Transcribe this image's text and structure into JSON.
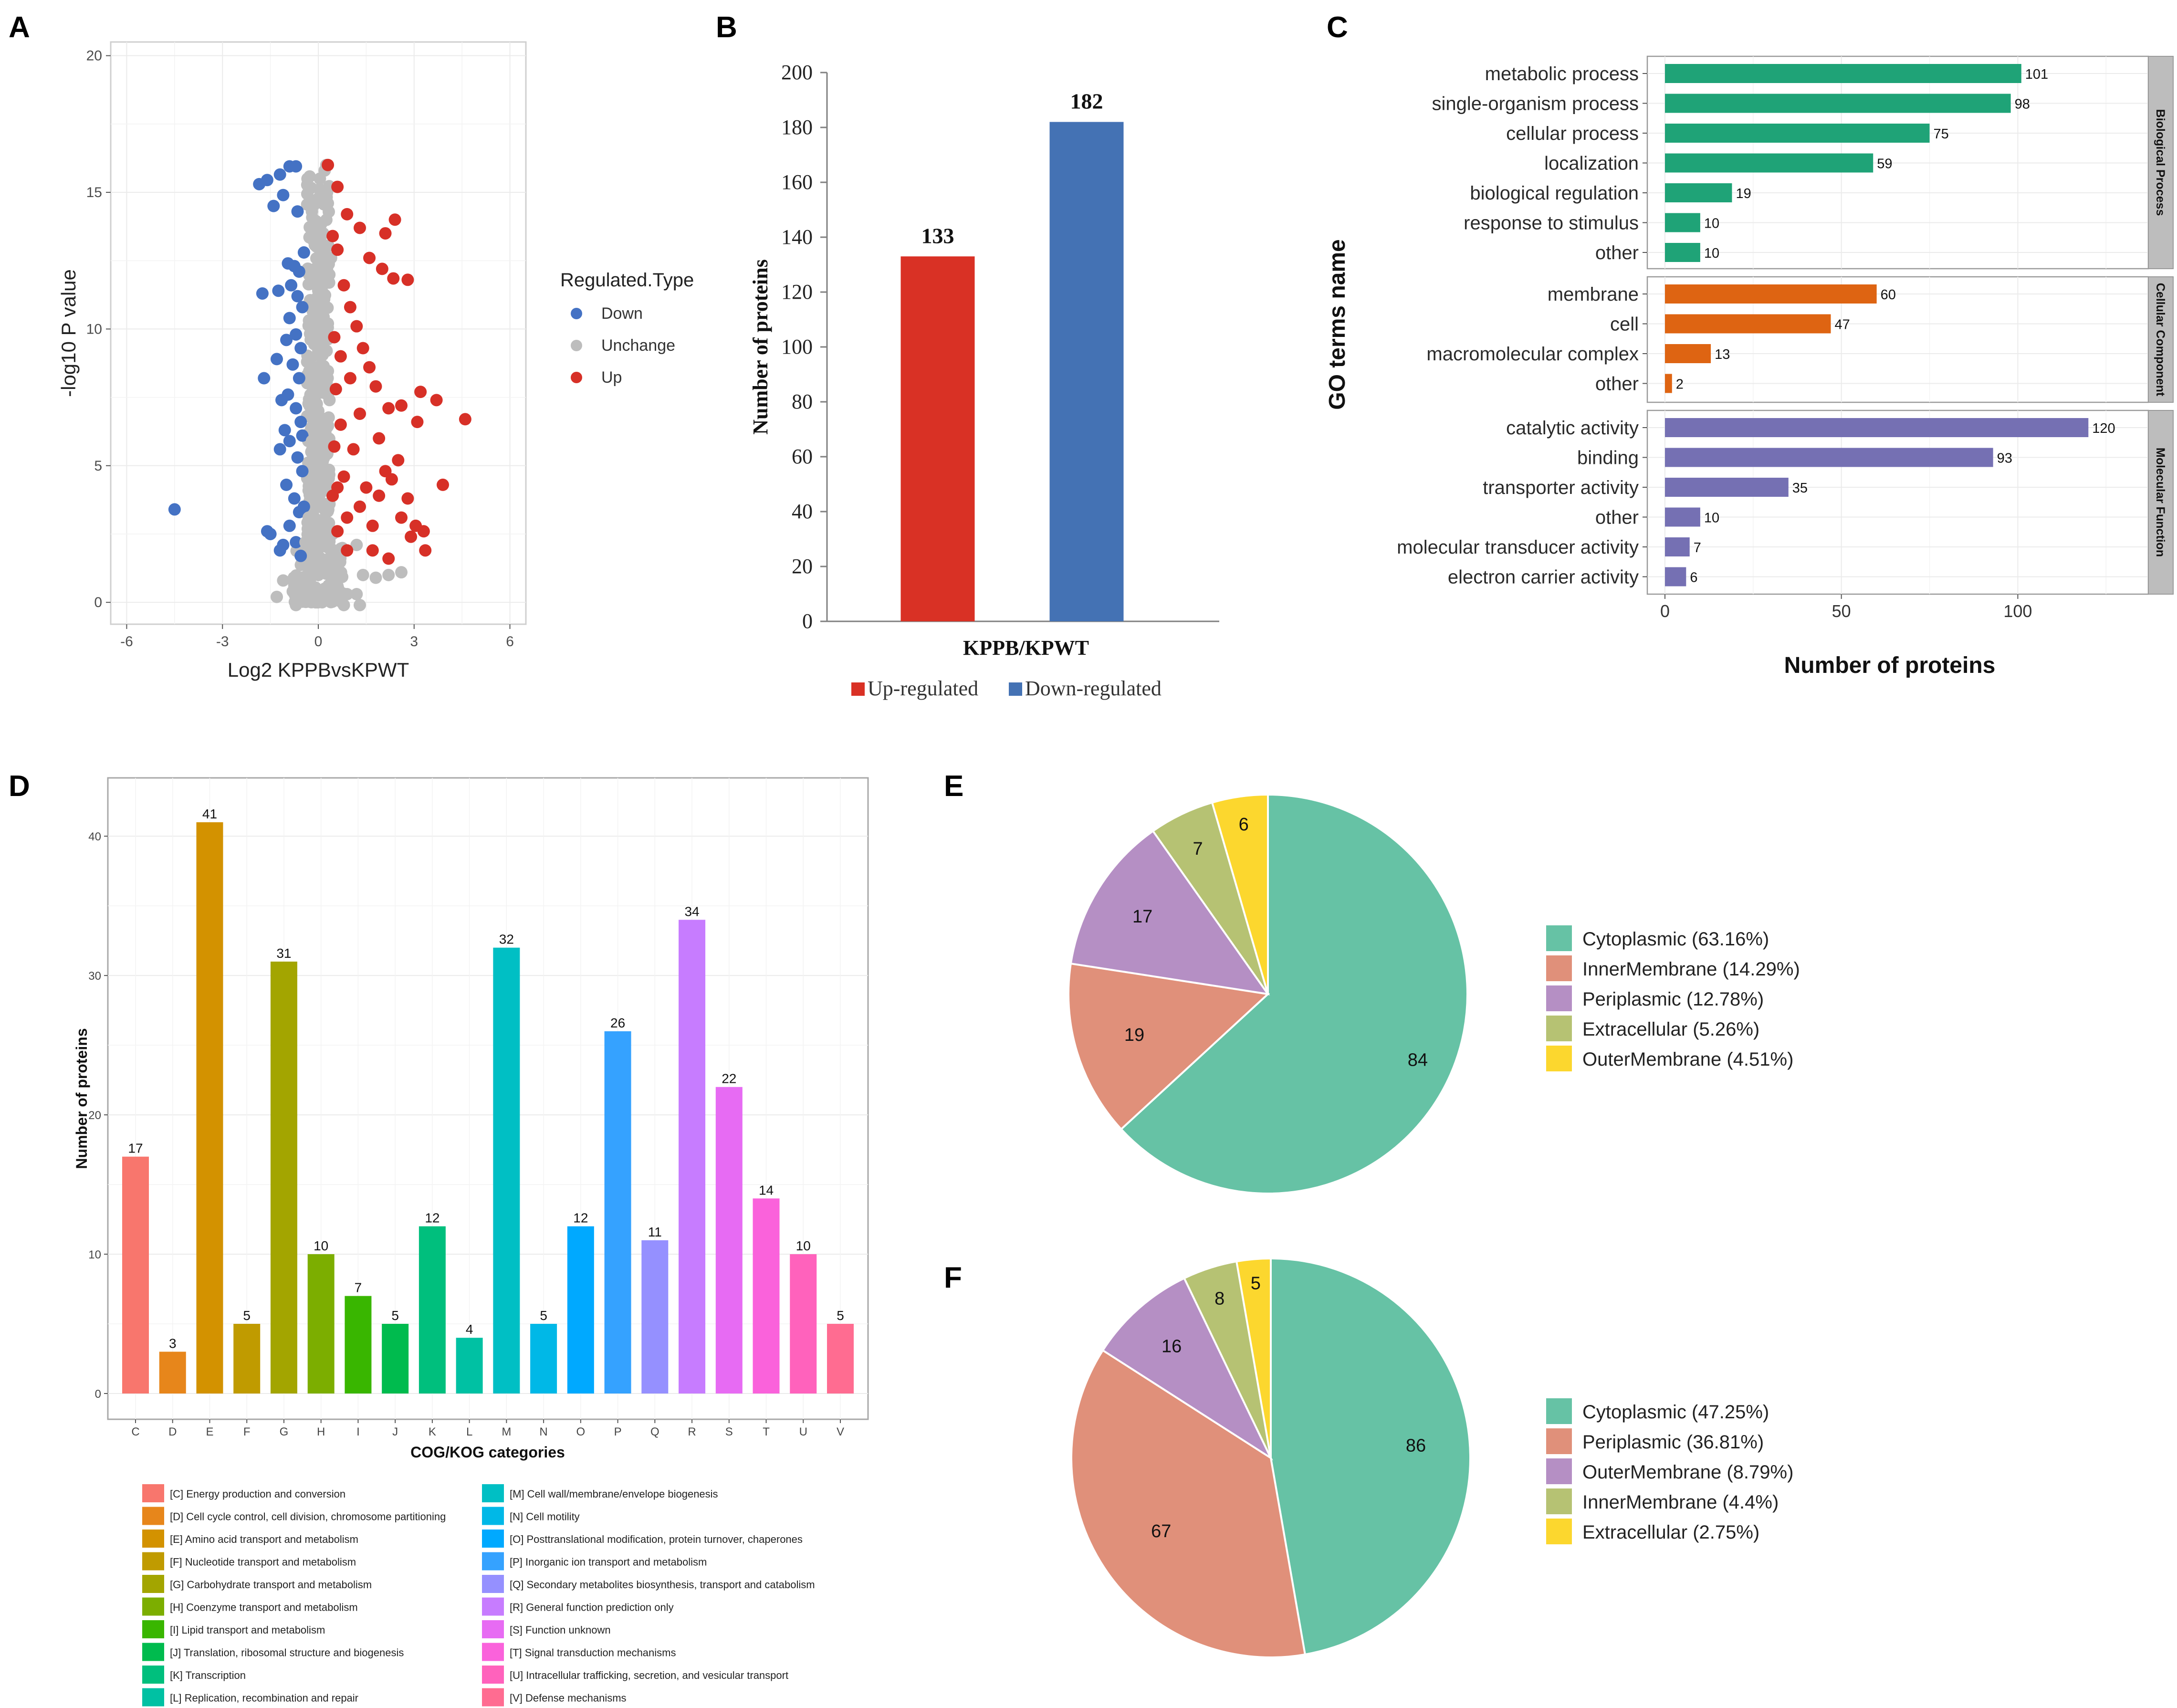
{
  "panels": {
    "A": "A",
    "B": "B",
    "C": "C",
    "D": "D",
    "E": "E",
    "F": "F"
  },
  "colors": {
    "down": "#4472c4",
    "unchange": "#bdbdbd",
    "up": "#d73027",
    "barUp": "#d93125",
    "barDown": "#4472b4",
    "bp": "#1fa377",
    "cc": "#de6412",
    "mf": "#7570b3",
    "pieTeal": "#66c2a5",
    "pieSalmon": "#e0907a",
    "pieLilac": "#b58fc4",
    "pieOlive": "#b6c273",
    "pieYellow": "#fcd72e"
  },
  "chart_data": [
    {
      "panel": "A",
      "type": "scatter",
      "xlabel": "Log2 KPPBvsKPWT",
      "ylabel": "-log10 P value",
      "xlim": [
        -6.5,
        6.5
      ],
      "ylim": [
        -0.8,
        20.5
      ],
      "xticks": [
        "-6",
        "-3",
        "0",
        "3",
        "6"
      ],
      "xtickValues": [
        -6,
        -3,
        0,
        3,
        6
      ],
      "yticks": [
        "0",
        "5",
        "10",
        "15",
        "20"
      ],
      "ytickValues": [
        0,
        5,
        10,
        15,
        20
      ],
      "legend": {
        "title": "Regulated.Type",
        "items": [
          "Down",
          "Unchange",
          "Up"
        ]
      },
      "series": [
        {
          "name": "Down",
          "points": [
            [
              -4.5,
              3.4
            ],
            [
              -1.85,
              15.3
            ],
            [
              -1.6,
              15.45
            ],
            [
              -1.2,
              15.65
            ],
            [
              -0.9,
              15.95
            ],
            [
              -0.7,
              15.95
            ],
            [
              -1.4,
              14.5
            ],
            [
              -1.1,
              14.9
            ],
            [
              -0.65,
              14.3
            ],
            [
              -1.75,
              11.3
            ],
            [
              -1.25,
              11.4
            ],
            [
              -1.7,
              8.2
            ],
            [
              -1.3,
              8.9
            ],
            [
              -1.6,
              2.6
            ],
            [
              -1.5,
              2.5
            ],
            [
              -1.2,
              1.9
            ],
            [
              -1.1,
              2.1
            ],
            [
              -0.95,
              12.4
            ],
            [
              -0.75,
              12.3
            ],
            [
              -0.6,
              12.1
            ],
            [
              -0.85,
              11.6
            ],
            [
              -0.65,
              11.2
            ],
            [
              -0.5,
              10.8
            ],
            [
              -0.9,
              10.4
            ],
            [
              -0.7,
              9.8
            ],
            [
              -0.55,
              9.3
            ],
            [
              -0.8,
              8.7
            ],
            [
              -0.6,
              8.2
            ],
            [
              -0.95,
              7.6
            ],
            [
              -0.7,
              7.1
            ],
            [
              -0.55,
              6.6
            ],
            [
              -0.9,
              5.9
            ],
            [
              -0.65,
              5.3
            ],
            [
              -0.5,
              4.8
            ],
            [
              -1.0,
              4.3
            ],
            [
              -0.75,
              3.8
            ],
            [
              -0.6,
              3.3
            ],
            [
              -0.9,
              2.8
            ],
            [
              -0.7,
              2.2
            ],
            [
              -0.55,
              1.7
            ],
            [
              -1.2,
              5.6
            ],
            [
              -1.05,
              6.3
            ],
            [
              -1.15,
              7.4
            ],
            [
              -1.0,
              9.6
            ],
            [
              -0.45,
              12.8
            ],
            [
              -0.5,
              6.1
            ],
            [
              -0.45,
              3.5
            ]
          ]
        },
        {
          "name": "Unchange",
          "points": [
            [
              -0.3,
              0.1
            ],
            [
              -0.1,
              0.2
            ],
            [
              0.1,
              0.15
            ],
            [
              0.3,
              0.1
            ],
            [
              -0.2,
              0.6
            ],
            [
              0.2,
              0.5
            ],
            [
              0,
              1
            ],
            [
              -0.25,
              1.4
            ],
            [
              0.25,
              1.5
            ],
            [
              0,
              2
            ],
            [
              -0.2,
              2.6
            ],
            [
              0.2,
              2.9
            ],
            [
              0,
              3.5
            ],
            [
              -0.15,
              4.2
            ],
            [
              0.15,
              4.6
            ],
            [
              0,
              5.2
            ],
            [
              -0.2,
              5.9
            ],
            [
              0.2,
              6.4
            ],
            [
              0,
              7
            ],
            [
              -0.1,
              7.8
            ],
            [
              0.15,
              8.5
            ],
            [
              0,
              9.2
            ],
            [
              -0.2,
              10
            ],
            [
              0.1,
              10.6
            ],
            [
              0,
              11.4
            ],
            [
              -0.1,
              12.2
            ],
            [
              0.15,
              12.9
            ],
            [
              0,
              13.6
            ],
            [
              -0.2,
              14.3
            ],
            [
              0.1,
              14.9
            ],
            [
              0.05,
              15.5
            ],
            [
              0.25,
              16
            ],
            [
              -0.3,
              3.1
            ],
            [
              0.35,
              3.6
            ],
            [
              -0.4,
              2.2
            ],
            [
              0.45,
              2.5
            ],
            [
              -0.5,
              0.7
            ],
            [
              0.6,
              0.6
            ],
            [
              -0.8,
              0.4
            ],
            [
              0.9,
              0.3
            ],
            [
              -1.3,
              0.2
            ],
            [
              1.2,
              0.3
            ],
            [
              1.4,
              1.0
            ],
            [
              1.2,
              2.1
            ],
            [
              1.8,
              0.9
            ],
            [
              2.2,
              1.0
            ],
            [
              2.6,
              1.1
            ],
            [
              -1.1,
              0.8
            ],
            [
              0.8,
              -0.1
            ],
            [
              1.3,
              -0.1
            ],
            [
              -0.7,
              -0.1
            ],
            [
              0.35,
              7.4
            ],
            [
              -0.35,
              8.8
            ],
            [
              0.3,
              10.2
            ],
            [
              0.4,
              12.6
            ],
            [
              0.3,
              14.6
            ],
            [
              0.2,
              15.8
            ]
          ]
        },
        {
          "name": "Up",
          "points": [
            [
              4.6,
              6.7
            ],
            [
              3.9,
              4.3
            ],
            [
              3.7,
              7.4
            ],
            [
              3.2,
              7.7
            ],
            [
              3.1,
              6.6
            ],
            [
              3.3,
              2.6
            ],
            [
              3.35,
              1.9
            ],
            [
              3.05,
              2.8
            ],
            [
              2.8,
              3.8
            ],
            [
              2.9,
              2.4
            ],
            [
              2.6,
              3.1
            ],
            [
              2.5,
              5.2
            ],
            [
              2.3,
              4.5
            ],
            [
              2.1,
              4.8
            ],
            [
              1.9,
              3.9
            ],
            [
              1.7,
              2.8
            ],
            [
              1.5,
              4.2
            ],
            [
              1.3,
              3.5
            ],
            [
              1.1,
              5.6
            ],
            [
              0.9,
              3.1
            ],
            [
              0.8,
              4.6
            ],
            [
              0.7,
              6.5
            ],
            [
              2.6,
              7.2
            ],
            [
              2.2,
              7.1
            ],
            [
              1.8,
              7.9
            ],
            [
              1.6,
              8.6
            ],
            [
              1.4,
              9.3
            ],
            [
              1.2,
              10.1
            ],
            [
              1.0,
              10.8
            ],
            [
              0.8,
              11.6
            ],
            [
              2.0,
              12.2
            ],
            [
              2.8,
              11.8
            ],
            [
              2.35,
              11.85
            ],
            [
              1.6,
              12.6
            ],
            [
              2.4,
              14
            ],
            [
              2.1,
              13.5
            ],
            [
              1.3,
              13.7
            ],
            [
              0.9,
              14.2
            ],
            [
              0.6,
              12.9
            ],
            [
              0.3,
              16
            ],
            [
              0.6,
              15.2
            ],
            [
              0.45,
              13.4
            ],
            [
              0.5,
              9.7
            ],
            [
              0.55,
              7.8
            ],
            [
              0.5,
              5.7
            ],
            [
              0.45,
              3.9
            ],
            [
              0.6,
              2.6
            ],
            [
              0.9,
              1.9
            ],
            [
              1.7,
              1.9
            ],
            [
              2.2,
              1.6
            ],
            [
              0.7,
              9.0
            ],
            [
              1.0,
              8.2
            ],
            [
              1.9,
              6.0
            ],
            [
              1.3,
              6.9
            ],
            [
              0.6,
              4.2
            ]
          ]
        }
      ]
    },
    {
      "panel": "B",
      "type": "bar",
      "ylabel": "Number of proteins",
      "xlabel": "KPPB/KPWT",
      "ylim": [
        0,
        200
      ],
      "yticks": [
        "0",
        "20",
        "40",
        "60",
        "80",
        "100",
        "120",
        "140",
        "160",
        "180",
        "200"
      ],
      "ytickValues": [
        0,
        20,
        40,
        60,
        80,
        100,
        120,
        140,
        160,
        180,
        200
      ],
      "categories": [
        "Up-regulated",
        "Down-regulated"
      ],
      "values": [
        133,
        182
      ],
      "labels": [
        "133",
        "182"
      ],
      "legend": [
        "Up-regulated",
        "Down-regulated"
      ]
    },
    {
      "panel": "C",
      "type": "bar",
      "orientation": "horizontal",
      "xlabel": "Number of proteins",
      "ylabel": "GO terms name",
      "xlim": [
        -5,
        137
      ],
      "xticks": [
        "0",
        "50",
        "100"
      ],
      "xtickValues": [
        0,
        50,
        100
      ],
      "facets": [
        {
          "name": "Biological Process",
          "terms": [
            "metabolic process",
            "single-organism process",
            "cellular process",
            "localization",
            "biological regulation",
            "response to stimulus",
            "other"
          ],
          "values": [
            101,
            98,
            75,
            59,
            19,
            10,
            10
          ],
          "labels": [
            "101",
            "98",
            "75",
            "59",
            "19",
            "10",
            "10"
          ]
        },
        {
          "name": "Cellular Component",
          "terms": [
            "membrane",
            "cell",
            "macromolecular complex",
            "other"
          ],
          "values": [
            60,
            47,
            13,
            2
          ],
          "labels": [
            "60",
            "47",
            "13",
            "2"
          ]
        },
        {
          "name": "Molecular Function",
          "terms": [
            "catalytic activity",
            "binding",
            "transporter activity",
            "other",
            "molecular transducer activity",
            "electron carrier activity"
          ],
          "values": [
            120,
            93,
            35,
            10,
            7,
            6
          ],
          "labels": [
            "120",
            "93",
            "35",
            "10",
            "7",
            "6"
          ]
        }
      ]
    },
    {
      "panel": "D",
      "type": "bar",
      "xlabel": "COG/KOG categories",
      "ylabel": "Number of proteins",
      "ylim": [
        0,
        43.5
      ],
      "yticks": [
        "0",
        "10",
        "20",
        "30",
        "40"
      ],
      "ytickValues": [
        0,
        10,
        20,
        30,
        40
      ],
      "categories": [
        "C",
        "D",
        "E",
        "F",
        "G",
        "H",
        "I",
        "J",
        "K",
        "L",
        "M",
        "N",
        "O",
        "P",
        "Q",
        "R",
        "S",
        "T",
        "U",
        "V"
      ],
      "values": [
        17,
        3,
        41,
        5,
        31,
        10,
        7,
        5,
        12,
        4,
        32,
        5,
        12,
        26,
        11,
        34,
        22,
        14,
        10,
        5
      ],
      "labels": [
        "17",
        "3",
        "41",
        "5",
        "31",
        "10",
        "7",
        "5",
        "12",
        "4",
        "32",
        "5",
        "12",
        "26",
        "11",
        "34",
        "22",
        "14",
        "10",
        "5"
      ],
      "colors": [
        "#f8766d",
        "#e7861b",
        "#d39200",
        "#c09b00",
        "#a3a500",
        "#7cae00",
        "#39b600",
        "#00bb4e",
        "#00bf7d",
        "#00c1a3",
        "#00bfc4",
        "#00b8e7",
        "#00a9ff",
        "#35a2ff",
        "#9590ff",
        "#c77cff",
        "#e76bf3",
        "#fa62db",
        "#ff62bc",
        "#ff6c91"
      ],
      "legend": [
        "[C] Energy production and conversion",
        "[D] Cell cycle control, cell division, chromosome partitioning",
        "[E] Amino acid transport and metabolism",
        "[F] Nucleotide transport and metabolism",
        "[G] Carbohydrate transport and metabolism",
        "[H] Coenzyme transport and metabolism",
        "[I] Lipid transport and metabolism",
        "[J] Translation, ribosomal structure and biogenesis",
        "[K] Transcription",
        "[L] Replication, recombination and repair",
        "[M] Cell wall/membrane/envelope biogenesis",
        "[N] Cell motility",
        "[O] Posttranslational modification, protein turnover, chaperones",
        "[P] Inorganic ion transport and metabolism",
        "[Q] Secondary metabolites biosynthesis, transport and catabolism",
        "[R] General function prediction only",
        "[S] Function unknown",
        "[T] Signal transduction mechanisms",
        "[U] Intracellular trafficking, secretion, and vesicular transport",
        "[V] Defense mechanisms"
      ]
    },
    {
      "panel": "E",
      "type": "pie",
      "slices": [
        {
          "name": "Cytoplasmic (63.16%)",
          "value": 84,
          "label": "84",
          "color": "#66c2a5"
        },
        {
          "name": "InnerMembrane (14.29%)",
          "value": 19,
          "label": "19",
          "color": "#e0907a"
        },
        {
          "name": "Periplasmic (12.78%)",
          "value": 17,
          "label": "17",
          "color": "#b58fc4"
        },
        {
          "name": "Extracellular (5.26%)",
          "value": 7,
          "label": "7",
          "color": "#b6c273"
        },
        {
          "name": "OuterMembrane (4.51%)",
          "value": 6,
          "label": "6",
          "color": "#fcd72e"
        }
      ]
    },
    {
      "panel": "F",
      "type": "pie",
      "slices": [
        {
          "name": "Cytoplasmic (47.25%)",
          "value": 86,
          "label": "86",
          "color": "#66c2a5"
        },
        {
          "name": "Periplasmic (36.81%)",
          "value": 67,
          "label": "67",
          "color": "#e0907a"
        },
        {
          "name": "OuterMembrane (8.79%)",
          "value": 16,
          "label": "16",
          "color": "#b58fc4"
        },
        {
          "name": "InnerMembrane (4.4%)",
          "value": 8,
          "label": "8",
          "color": "#b6c273"
        },
        {
          "name": "Extracellular (2.75%)",
          "value": 5,
          "label": "5",
          "color": "#fcd72e"
        }
      ]
    }
  ]
}
